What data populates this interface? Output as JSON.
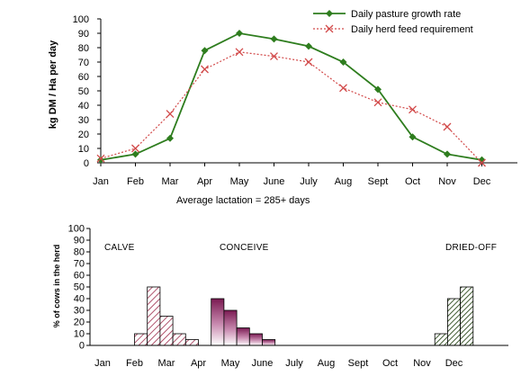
{
  "chart_data": [
    {
      "type": "line",
      "ylabel": "kg DM / Ha per day",
      "ylim": [
        0,
        100
      ],
      "yticks": [
        0,
        10,
        20,
        30,
        40,
        50,
        60,
        70,
        80,
        90,
        100
      ],
      "categories": [
        "Jan",
        "Feb",
        "Mar",
        "Apr",
        "May",
        "June",
        "July",
        "Aug",
        "Sept",
        "Oct",
        "Nov",
        "Dec"
      ],
      "legend_position": "top-right",
      "series": [
        {
          "name": "Daily pasture growth rate",
          "marker": "diamond",
          "line_style": "solid",
          "color": "#2e7d1e",
          "values": [
            2,
            6,
            17,
            78,
            90,
            86,
            81,
            70,
            51,
            18,
            6,
            2
          ]
        },
        {
          "name": "Daily herd feed requirement",
          "marker": "x",
          "line_style": "dotted",
          "color": "#d24a4a",
          "values": [
            3,
            10,
            34,
            65,
            77,
            74,
            70,
            52,
            42,
            37,
            25,
            0
          ]
        }
      ],
      "annotations": [
        "Average lactation = 285+ days"
      ]
    },
    {
      "type": "bar",
      "ylabel": "% of cows in the herd",
      "ylim": [
        0,
        100
      ],
      "yticks": [
        0,
        10,
        20,
        30,
        40,
        50,
        60,
        70,
        80,
        90,
        100
      ],
      "categories": [
        "Jan",
        "Feb",
        "Mar",
        "Apr",
        "May",
        "June",
        "July",
        "Aug",
        "Sept",
        "Oct",
        "Nov",
        "Dec"
      ],
      "phases": [
        {
          "label": "CALVE",
          "fill": "hatch-red",
          "bars": [
            {
              "at": 1.2,
              "value": 10
            },
            {
              "at": 1.6,
              "value": 50
            },
            {
              "at": 2.0,
              "value": 25
            },
            {
              "at": 2.4,
              "value": 10
            },
            {
              "at": 2.8,
              "value": 5
            }
          ]
        },
        {
          "label": "CONCEIVE",
          "fill": "gradient-purple",
          "bars": [
            {
              "at": 3.6,
              "value": 40
            },
            {
              "at": 4.0,
              "value": 30
            },
            {
              "at": 4.4,
              "value": 15
            },
            {
              "at": 4.8,
              "value": 10
            },
            {
              "at": 5.2,
              "value": 5
            }
          ]
        },
        {
          "label": "DRIED-OFF",
          "fill": "hatch-green",
          "bars": [
            {
              "at": 10.6,
              "value": 10
            },
            {
              "at": 11.0,
              "value": 40
            },
            {
              "at": 11.4,
              "value": 50
            }
          ]
        }
      ]
    }
  ]
}
